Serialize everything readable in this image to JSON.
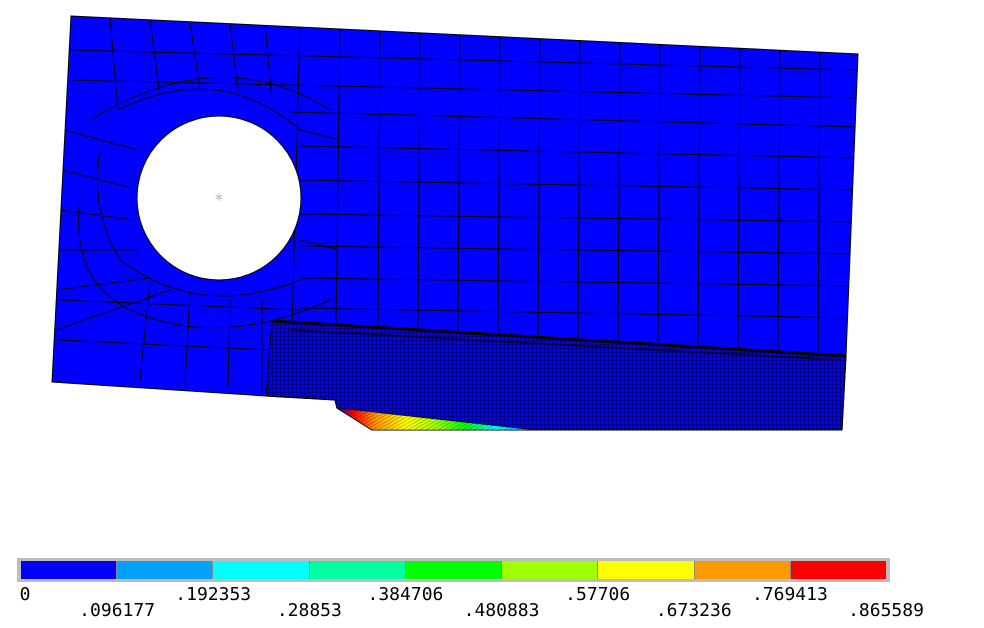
{
  "plot": {
    "background": "#ffffff",
    "body_color": "#0000ff",
    "mesh_color": "#000000",
    "node_marker": "*",
    "node_marker_color": "#b0b0b0"
  },
  "legend": {
    "colors": [
      "#0000ff",
      "#00a2ff",
      "#00ffff",
      "#00ffa0",
      "#00ff00",
      "#a0ff00",
      "#ffff00",
      "#ff9900",
      "#ff0000"
    ],
    "labels": [
      "0",
      ".096177",
      ".192353",
      ".28853",
      ".384706",
      ".480883",
      ".57706",
      ".673236",
      ".769413",
      ".865589"
    ]
  }
}
